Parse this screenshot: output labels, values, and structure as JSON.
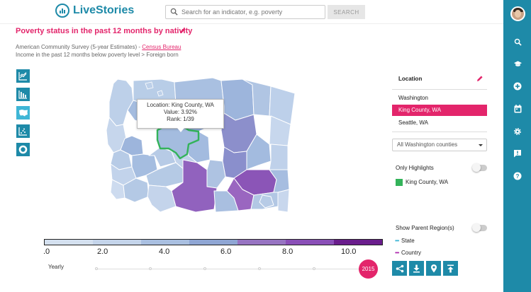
{
  "header": {
    "brand": "LiveStories",
    "search_placeholder": "Search for an indicator, e.g. poverty",
    "search_button": "SEARCH"
  },
  "title": "Poverty status in the past 12 months by nativity",
  "source": {
    "prefix": "American Community Survey (5-year Estimates) - ",
    "link": "Census Bureau"
  },
  "breadcrumb": "Income in the past 12 months below poverty level > Foreign born",
  "chart_types": [
    "line-chart-icon",
    "bar-chart-icon",
    "map-icon",
    "scatter-icon",
    "donut-icon"
  ],
  "map": {
    "tooltip": {
      "location": "Location: King County, WA",
      "value": "Value: 3.92%",
      "rank": "Rank: 1/39"
    }
  },
  "legend": {
    "labels": [
      ".0",
      "2.0",
      "4.0",
      "6.0",
      "8.0",
      "10.0"
    ],
    "colors": [
      "#d4e0ef",
      "#c4d4ea",
      "#a9bfe0",
      "#8fa6d4",
      "#9774c2",
      "#8a4fb7",
      "#6a1d8c"
    ]
  },
  "timeline": {
    "mode": "Yearly",
    "year": "2015"
  },
  "location_panel": {
    "label": "Location",
    "items": [
      "Washington",
      "King County, WA",
      "Seattle, WA"
    ],
    "selected_index": 1,
    "dropdown": "All Washington counties",
    "only_highlights": "Only Highlights",
    "highlight_item": "King County, WA",
    "show_parent": "Show Parent Region(s)",
    "parent_state": "State",
    "parent_country": "Country"
  },
  "colors": {
    "accent": "#e3256b",
    "brand": "#1e8aa8",
    "highlight": "#33b35a"
  }
}
